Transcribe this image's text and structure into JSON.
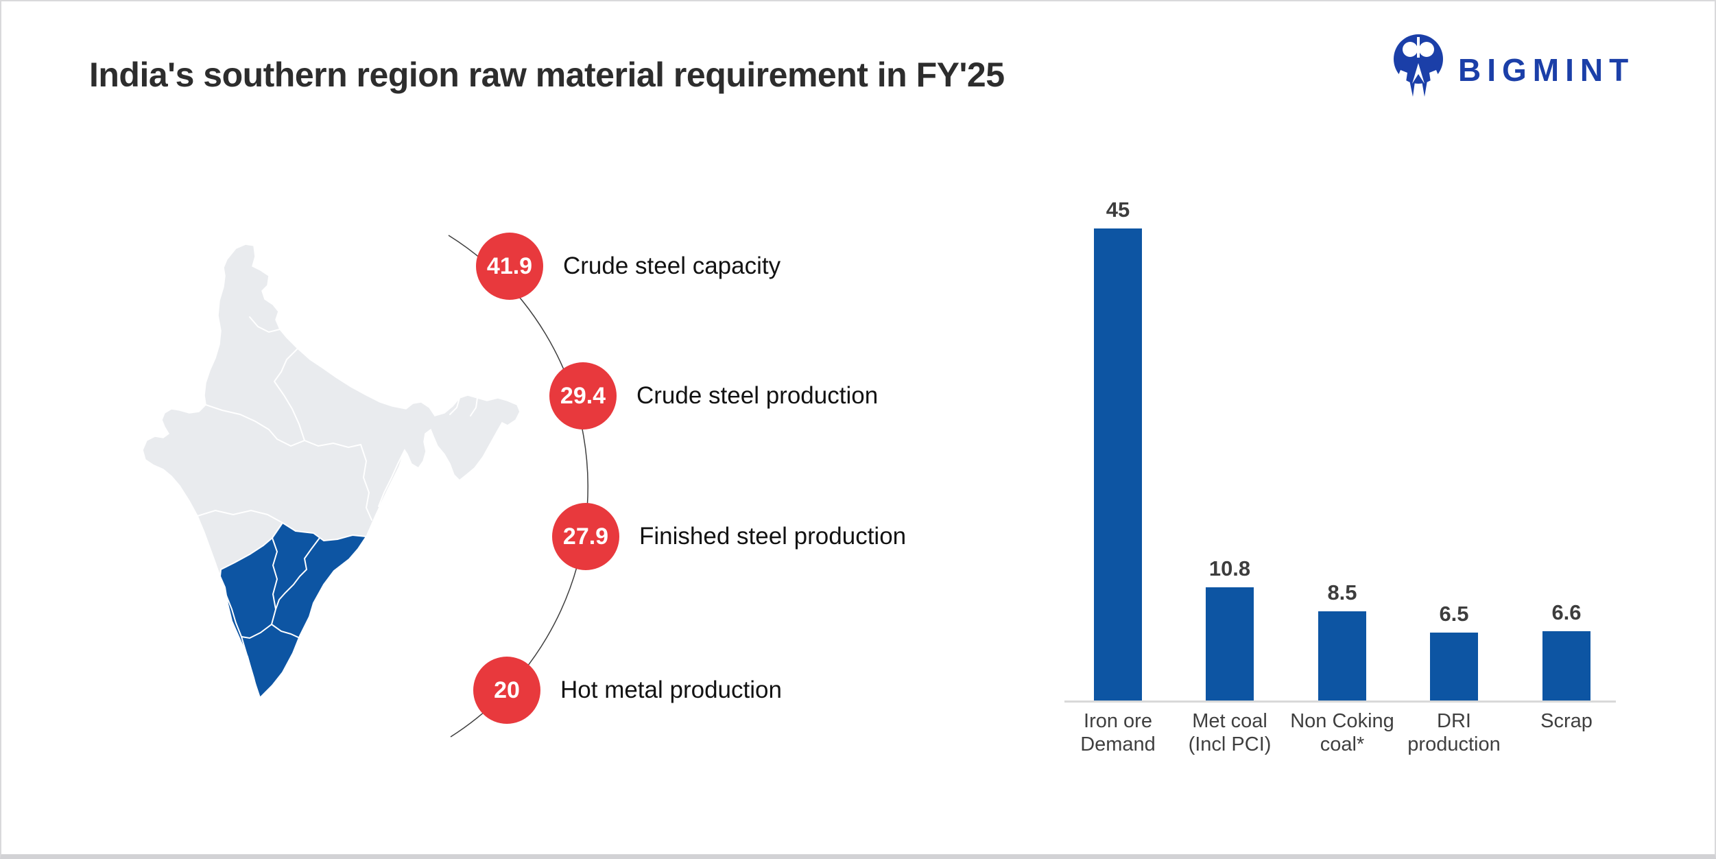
{
  "header": {
    "title": "India's southern region raw material requirement in FY'25",
    "logo": {
      "brand": "BIGMINT",
      "color": "#1b3fa8"
    }
  },
  "colors": {
    "bubble_red": "#e8393d",
    "steel_blue": "#0d55a3",
    "map_gray": "#e9ebee",
    "axis_gray": "#d9d9d9"
  },
  "left_panel": {
    "items": [
      {
        "value": "41.9",
        "label": "Crude steel capacity"
      },
      {
        "value": "29.4",
        "label": "Crude steel production"
      },
      {
        "value": "27.9",
        "label": "Finished steel production"
      },
      {
        "value": "20",
        "label": "Hot metal production"
      }
    ],
    "map_name": "india-map-southern-region-highlighted"
  },
  "chart_data": {
    "type": "bar",
    "title": "",
    "categories": [
      "Iron ore Demand",
      "Met coal (Incl PCI)",
      "Non Coking coal*",
      "DRI production",
      "Scrap"
    ],
    "category_lines": [
      [
        "Iron ore",
        "Demand"
      ],
      [
        "Met coal",
        "(Incl PCI)"
      ],
      [
        "Non Coking",
        "coal*"
      ],
      [
        "DRI",
        "production"
      ],
      [
        "Scrap",
        ""
      ]
    ],
    "values": [
      45,
      10.8,
      8.5,
      6.5,
      6.6
    ],
    "value_labels": [
      "45",
      "10.8",
      "8.5",
      "6.5",
      "6.6"
    ],
    "xlabel": "",
    "ylabel": "",
    "ylim": [
      0,
      45
    ],
    "grid": false,
    "legend": false,
    "bar_color": "#0d55a3",
    "axis_color": "#d9d9d9"
  }
}
